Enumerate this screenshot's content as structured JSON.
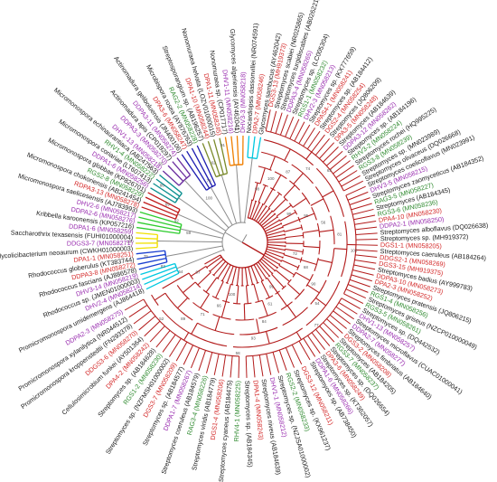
{
  "colors": {
    "tree_red": "#b31b1b",
    "tree_grey": "#8c8c8c",
    "label_black": "#1a1a1a",
    "label_red": "#d42a2a",
    "label_green": "#2f8a2f",
    "label_purple": "#9a2fb0"
  },
  "clade_colors": [
    "#00c8e0",
    "#1a3fd0",
    "#f0e000",
    "#2ecc2e",
    "#c01a1a",
    "#0a8f8f",
    "#6b2fa0",
    "#1c1cb0",
    "#7a8a2a",
    "#f07f00"
  ],
  "labels_right": [
    {
      "text": "DGS3-13 (MH919373)",
      "color": "red"
    },
    {
      "text": "Streptomyces scabiei (NR025865)",
      "color": "black"
    },
    {
      "text": "Streptomyces turgidiscabies (AB026221)",
      "color": "black"
    },
    {
      "text": "DDPA3-4 (MN058265)",
      "color": "purple"
    },
    {
      "text": "Streptomyces sp. (LC005304)",
      "color": "black"
    },
    {
      "text": "RGS1-1 (MN058232)",
      "color": "green"
    },
    {
      "text": "DHV2-3 (MN058213)",
      "color": "purple"
    },
    {
      "text": "Streptomyces sp. (KX777659)",
      "color": "black"
    },
    {
      "text": "DPAS4-1 (MN058241)",
      "color": "red"
    },
    {
      "text": "Streptomyces sp. (AB184412)",
      "color": "black"
    },
    {
      "text": "DGS2-4 (MN058254)",
      "color": "red"
    },
    {
      "text": "Streptomyces (JQ806209)",
      "color": "black"
    },
    {
      "text": "DPA3-5 (MN058248)",
      "color": "red"
    },
    {
      "text": "Streptomyces (AB184639)",
      "color": "black"
    },
    {
      "text": "DDPA3-12 (MN058262)",
      "color": "purple"
    },
    {
      "text": "Streptomyces sp. (AB184196)",
      "color": "black"
    },
    {
      "text": "RHV3-2 (MN058224)",
      "color": "green"
    },
    {
      "text": "Streptomyces rochei (HQ995225)",
      "color": "black"
    },
    {
      "text": "RGS3-8 (MN058239)",
      "color": "green"
    },
    {
      "text": "Streptomyces sp. (MN023989)",
      "color": "black"
    },
    {
      "text": "Streptomyces olivaceus (DQ026668)",
      "color": "black"
    },
    {
      "text": "Streptomyces coelicoflavus (MN023991)",
      "color": "black"
    },
    {
      "text": "DHV3-5 (MN058215)",
      "color": "purple"
    },
    {
      "text": "Streptomyces zaomyceticus (AB184352)",
      "color": "black"
    },
    {
      "text": "RAG3-5 (MN058227)",
      "color": "green"
    },
    {
      "text": "Streptomyces (AB184345)",
      "color": "black"
    },
    {
      "text": "RGS3-6 (MN058236)",
      "color": "green"
    },
    {
      "text": "DPA4-10 (MN058230)",
      "color": "red"
    },
    {
      "text": "DDPA2-1 (MN058250)",
      "color": "purple"
    },
    {
      "text": "Streptomyces alboflavus (DQ026638)",
      "color": "black"
    },
    {
      "text": "Streptomyces sp. (MH919372)",
      "color": "black"
    },
    {
      "text": "DGS1-1 (MN058205)",
      "color": "red"
    },
    {
      "text": "Streptomyces caeruleus (AB184264)",
      "color": "black"
    },
    {
      "text": "DDGS2-1 (MN058269)",
      "color": "red"
    },
    {
      "text": "DGS3-15 (MH919375)",
      "color": "red"
    },
    {
      "text": "Streptomyces badius (AY999783)",
      "color": "black"
    },
    {
      "text": "DDPA3-10 (MN058273)",
      "color": "red"
    },
    {
      "text": "DPA2-3 (MN058252)",
      "color": "red"
    },
    {
      "text": "Streptomyces pratensis (JQ806215)",
      "color": "black"
    },
    {
      "text": "RGS1-4 (MN058256)",
      "color": "green"
    },
    {
      "text": "Streptomyces griseus (NZCP010000049)",
      "color": "black"
    },
    {
      "text": "RGS3-5 (MN058261)",
      "color": "green"
    },
    {
      "text": "Streptomyces sp. (DQ442532)",
      "color": "black"
    },
    {
      "text": "DHV1-13 (MN058257)",
      "color": "purple"
    },
    {
      "text": "Streptomyces microflavus (CUAC01000041)",
      "color": "black"
    },
    {
      "text": "DDPA2-7 (MN058277)",
      "color": "purple"
    },
    {
      "text": "Streptomyces fimbriatus (AB184640)",
      "color": "black"
    },
    {
      "text": "DGS3-2 (MN058208)",
      "color": "red"
    },
    {
      "text": "Streptomyces (AB184205)",
      "color": "black"
    },
    {
      "text": "RGS3-7 (MN058237)",
      "color": "green"
    },
    {
      "text": "Streptomyces sp. (DQ026654)",
      "color": "black"
    },
    {
      "text": "DPA3-6 (MN058249)",
      "color": "red"
    },
    {
      "text": "Streptomyces sp. (KT362057)",
      "color": "black"
    },
    {
      "text": "DDPA1-6 (MN058266)",
      "color": "purple"
    },
    {
      "text": "Streptomyces sp. (AB738450)",
      "color": "black"
    }
  ],
  "labels_bottom": [
    {
      "text": "DGS3-12 (MN058211)",
      "color": "red"
    },
    {
      "text": "Streptomyces sp. (KX961237)",
      "color": "black"
    },
    {
      "text": "RGS2-2 (MN058233)",
      "color": "green"
    },
    {
      "text": "Streptomyces sp. (NZJSA01000002)",
      "color": "black"
    },
    {
      "text": "DHV1-1 (MN058212)",
      "color": "purple"
    },
    {
      "text": "Streptomyces niveus (AB184639)",
      "color": "black"
    },
    {
      "text": "DPA1-4 (MN058243)",
      "color": "red"
    },
    {
      "text": "Streptomyces sp. (AB184345)",
      "color": "black"
    },
    {
      "text": "RHV4-1 (MN058225)",
      "color": "green"
    },
    {
      "text": "Streptomyces cyaneus (AB184475)",
      "color": "black"
    },
    {
      "text": "DGS1-4 (MN058206)",
      "color": "red"
    },
    {
      "text": "Streptomyces viridis (AB184779)",
      "color": "black"
    },
    {
      "text": "RAG3-4 (MN058226)",
      "color": "green"
    },
    {
      "text": "Streptomyces coeruleus (AB184579)",
      "color": "black"
    },
    {
      "text": "DDPA1-7 (MN058267)",
      "color": "purple"
    },
    {
      "text": "Streptomyces sp. (AB184577)",
      "color": "black"
    },
    {
      "text": "DGS3-7 (MN058209)",
      "color": "red"
    },
    {
      "text": "Streptomyces sp. (NZFMSH01000002)",
      "color": "black"
    },
    {
      "text": "RGS1-2 (MN058230)",
      "color": "green"
    },
    {
      "text": "Streptomyces sp. (AB184628)",
      "color": "black"
    },
    {
      "text": "DPA4-2 (MN058242)",
      "color": "red"
    },
    {
      "text": "Cellulosimicrobium funkei (AY501364)",
      "color": "black"
    },
    {
      "text": "DDGS3-6 (MN058270)",
      "color": "red"
    },
    {
      "text": "Promicromonospora kroppenstedtii (FN293378)",
      "color": "black"
    },
    {
      "text": "Promicromonospora xylanilytica (NR044512)",
      "color": "black"
    },
    {
      "text": "DDPA2-3 (MN058275)",
      "color": "purple"
    }
  ],
  "labels_left": [
    {
      "text": "Promicromonospora umidemergens (AJ864418)",
      "color": "black"
    },
    {
      "text": "DHV2-4 (MN058214)",
      "color": "purple"
    },
    {
      "text": "Rhodococcus sp. (JMEN01000003)",
      "color": "black"
    },
    {
      "text": "DHV3-14 (MN058219)",
      "color": "purple"
    },
    {
      "text": "Rhodococcus fascians (AJ886578)",
      "color": "black"
    },
    {
      "text": "DDPA3-8 (MN058272)",
      "color": "red"
    },
    {
      "text": "Rhodococcus globerulus (KT383744)",
      "color": "black"
    },
    {
      "text": "DPA1-1 (MN058251)",
      "color": "red"
    },
    {
      "text": "Mycolicibacterium neoaurum (CWKH01000003)",
      "color": "black"
    },
    {
      "text": "DDGS3-7 (MN058271)",
      "color": "purple"
    },
    {
      "text": "Saccharothrix texasensis (FUHI01000004)",
      "color": "black"
    },
    {
      "text": "DDPA1-6 (MN058259)",
      "color": "purple"
    },
    {
      "text": "Kribbella karoonensis (KP057216)",
      "color": "black"
    },
    {
      "text": "DDPA2-6 (MN058276)",
      "color": "purple"
    },
    {
      "text": "DHV2-6 (MN058217)",
      "color": "purple"
    },
    {
      "text": "Micromonospora saelicesensis (AJ783993)",
      "color": "black"
    },
    {
      "text": "RDPA3-13 (MN058278)",
      "color": "red"
    },
    {
      "text": "Micromonospora chokoriensis (AB241454)",
      "color": "black"
    },
    {
      "text": "RGS2-8 (MN058229)",
      "color": "green"
    },
    {
      "text": "Micromonospora globbae (KP826701)",
      "color": "black"
    },
    {
      "text": "DDPA1-6 (MN058256)",
      "color": "purple"
    },
    {
      "text": "Micromonospora coriariae (LT607413)",
      "color": "black"
    },
    {
      "text": "RHV1-4 (MN058222)",
      "color": "green"
    },
    {
      "text": "Micromonospora echinaurantiaca (AB247563)",
      "color": "black"
    },
    {
      "text": "DHV1-13 (MN058218)",
      "color": "purple"
    }
  ],
  "labels_top": [
    {
      "text": "DDPA3-3 (MN058270)",
      "color": "purple"
    },
    {
      "text": "Actinomadura apis (CP019297)",
      "color": "black"
    },
    {
      "text": "DDPA3-11 (MN058274)",
      "color": "purple"
    },
    {
      "text": "Actinomadura geliboluensis (JN400106)",
      "color": "black"
    },
    {
      "text": "DPA3-6 (MN058247)",
      "color": "red"
    },
    {
      "text": "Microbispora rosea (AY876763)",
      "color": "black"
    },
    {
      "text": "RAG2-2 (MN058228)",
      "color": "green"
    },
    {
      "text": "Streptosporangium sp. (AB196257)",
      "color": "black"
    },
    {
      "text": "DPA1-10 (MN058244)",
      "color": "red"
    },
    {
      "text": "Nonomuraea helvata (LOZV01000015)",
      "color": "black"
    },
    {
      "text": "DPA1-11 (MN058245)",
      "color": "red"
    },
    {
      "text": "Nonomuraea sp. (CP017717)",
      "color": "black"
    },
    {
      "text": "DHV1-11 (MN058216)",
      "color": "purple"
    },
    {
      "text": "Glycomyces algeriensis (AY462041)",
      "color": "black"
    },
    {
      "text": "DHV3-3 (MN058218)",
      "color": "purple"
    },
    {
      "text": "Nocardiopsis dassonvillei (NR074591)",
      "color": "black"
    },
    {
      "text": "DPA2-7 (MN058246)",
      "color": "red"
    },
    {
      "text": "Glycomyces sambucus (AY462042)",
      "color": "black"
    }
  ],
  "bootstrap": [
    "98",
    "100",
    "87",
    "74",
    "63",
    "99",
    "95",
    "56",
    "81",
    "100",
    "72",
    "68",
    "90",
    "54",
    "77",
    "99",
    "61",
    "84",
    "93",
    "58",
    "100",
    "66",
    "71",
    "89",
    "52",
    "97",
    "64",
    "83",
    "75",
    "100",
    "59",
    "92",
    "69",
    "86",
    "55",
    "100",
    "78",
    "62",
    "91",
    "57"
  ]
}
